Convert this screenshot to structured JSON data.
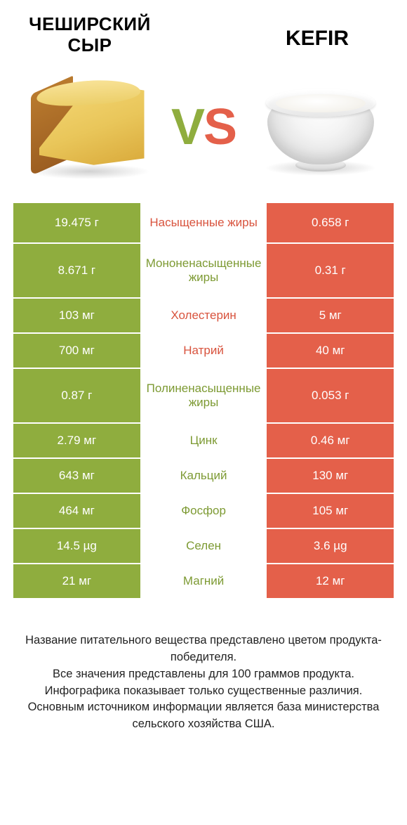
{
  "colors": {
    "green": "#8fad3e",
    "orange": "#e4604a",
    "label_green": "#7d9a33",
    "label_orange": "#d8533d",
    "vs_v": "#8fad3e",
    "vs_s": "#e4604a"
  },
  "header": {
    "left_title": "ЧЕШИРСКИЙ СЫР",
    "right_title": "Kefir",
    "vs_v": "V",
    "vs_s": "S"
  },
  "rows": [
    {
      "left": "19.475 г",
      "label": "Насыщенные жиры",
      "right": "0.658 г",
      "label_color": "orange",
      "tall": true
    },
    {
      "left": "8.671 г",
      "label": "Мононенасыщенные жиры",
      "right": "0.31 г",
      "label_color": "green",
      "tall": true
    },
    {
      "left": "103 мг",
      "label": "Холестерин",
      "right": "5 мг",
      "label_color": "orange"
    },
    {
      "left": "700 мг",
      "label": "Натрий",
      "right": "40 мг",
      "label_color": "orange"
    },
    {
      "left": "0.87 г",
      "label": "Полиненасыщенные жиры",
      "right": "0.053 г",
      "label_color": "green",
      "tall": true
    },
    {
      "left": "2.79 мг",
      "label": "Цинк",
      "right": "0.46 мг",
      "label_color": "green"
    },
    {
      "left": "643 мг",
      "label": "Кальций",
      "right": "130 мг",
      "label_color": "green"
    },
    {
      "left": "464 мг",
      "label": "Фосфор",
      "right": "105 мг",
      "label_color": "green"
    },
    {
      "left": "14.5 µg",
      "label": "Селен",
      "right": "3.6 µg",
      "label_color": "green"
    },
    {
      "left": "21 мг",
      "label": "Магний",
      "right": "12 мг",
      "label_color": "green"
    }
  ],
  "footer": {
    "l1": "Название питательного вещества представлено цветом продукта-победителя.",
    "l2": "Все значения представлены для 100 граммов продукта.",
    "l3": "Инфографика показывает только существенные различия.",
    "l4": "Основным источником информации является база министерства сельского хозяйства США."
  }
}
